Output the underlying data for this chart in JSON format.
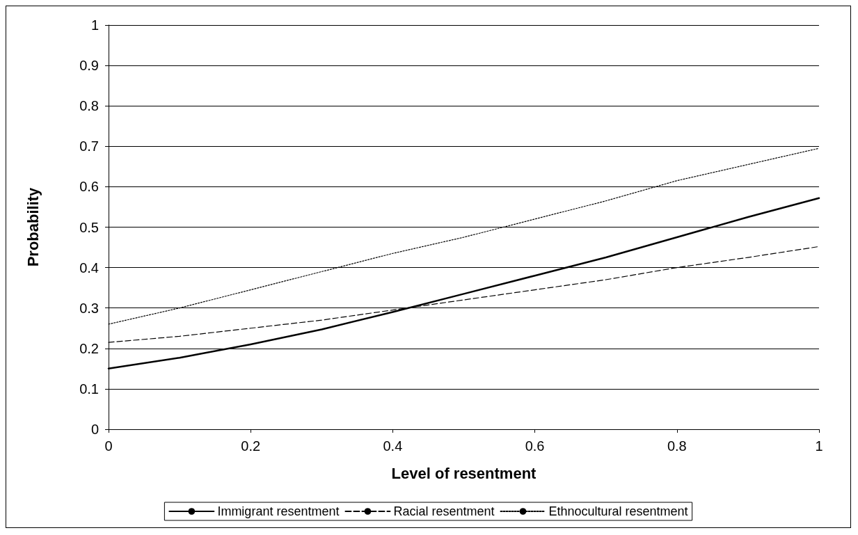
{
  "chart_data": {
    "type": "line",
    "xlabel": "Level of resentment",
    "ylabel": "Probability",
    "x": [
      0,
      0.1,
      0.2,
      0.3,
      0.4,
      0.5,
      0.6,
      0.7,
      0.8,
      0.9,
      1
    ],
    "series": [
      {
        "name": "Immigrant resentment",
        "color": "#000000",
        "line_style": "solid",
        "values": [
          0.15,
          0.177,
          0.21,
          0.247,
          0.29,
          0.335,
          0.38,
          0.425,
          0.475,
          0.525,
          0.572
        ]
      },
      {
        "name": "Racial resentment",
        "color": "#000000",
        "line_style": "dashed",
        "values": [
          0.215,
          0.23,
          0.25,
          0.27,
          0.295,
          0.32,
          0.345,
          0.37,
          0.4,
          0.425,
          0.452
        ]
      },
      {
        "name": "Ethnocultural resentment",
        "color": "#000000",
        "line_style": "dotted",
        "values": [
          0.26,
          0.3,
          0.345,
          0.39,
          0.435,
          0.475,
          0.52,
          0.565,
          0.615,
          0.655,
          0.695
        ]
      }
    ],
    "xlim": [
      0,
      1
    ],
    "xticks": [
      0,
      0.2,
      0.4,
      0.6,
      0.8,
      1
    ],
    "ylim": [
      0,
      1
    ],
    "yticks": [
      0,
      0.1,
      0.2,
      0.3,
      0.4,
      0.5,
      0.6,
      0.7,
      0.8,
      0.9,
      1
    ],
    "grid": "y",
    "legend": "bottom",
    "marker": "none"
  }
}
